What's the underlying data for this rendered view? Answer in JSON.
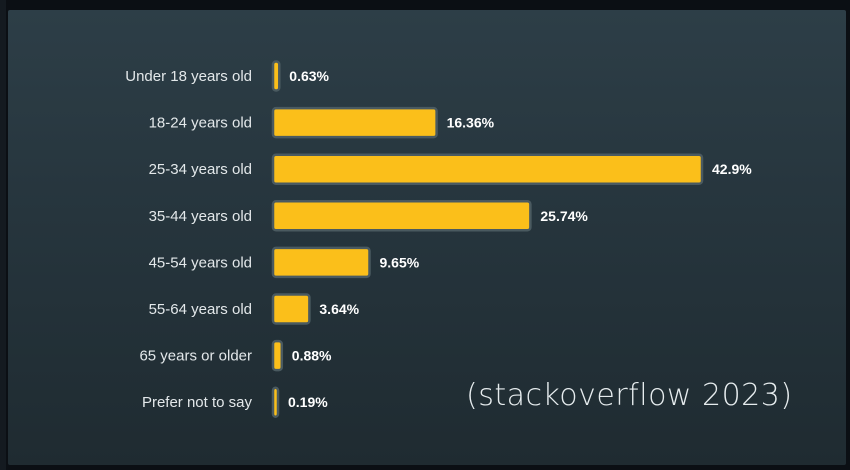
{
  "chart_data": {
    "type": "bar",
    "orientation": "horizontal",
    "categories": [
      "Under 18 years old",
      "18-24 years old",
      "25-34 years old",
      "35-44 years old",
      "45-54 years old",
      "55-64 years old",
      "65 years or older",
      "Prefer not to say"
    ],
    "values": [
      0.63,
      16.36,
      42.9,
      25.74,
      9.65,
      3.64,
      0.88,
      0.19
    ],
    "value_labels": [
      "0.63%",
      "16.36%",
      "42.9%",
      "25.74%",
      "9.65%",
      "3.64%",
      "0.88%",
      "0.19%"
    ],
    "grid": false,
    "legend": "none",
    "bar_color": "#fbbf1a",
    "bar_outline_color": "#4a5a60",
    "background_color": "#2a3a42"
  },
  "annotation": {
    "source_text": "(stackoverflow 2023)"
  }
}
